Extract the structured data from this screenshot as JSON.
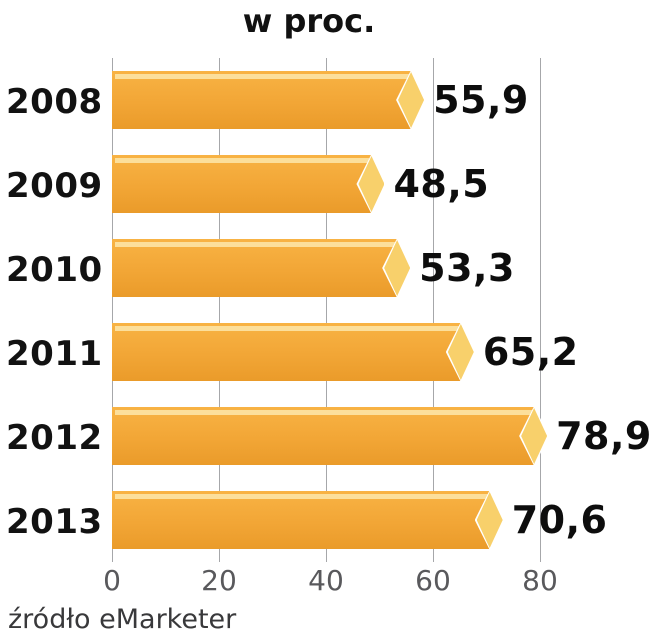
{
  "chart_data": {
    "type": "bar",
    "orientation": "horizontal",
    "title": "w proc.",
    "categories": [
      "2008",
      "2009",
      "2010",
      "2011",
      "2012",
      "2013"
    ],
    "values": [
      55.9,
      48.5,
      53.3,
      65.2,
      78.9,
      70.6
    ],
    "value_labels": [
      "55,9",
      "48,5",
      "53,3",
      "65,2",
      "78,9",
      "70,6"
    ],
    "xlim": [
      0,
      80
    ],
    "x_ticks": [
      0,
      20,
      40,
      60,
      80
    ],
    "x_tick_labels": [
      "0",
      "20",
      "40",
      "60",
      "80"
    ],
    "grid": "vertical",
    "legend": "none",
    "source": "źródło eMarketer",
    "colors": {
      "bar_main": "#F2A636",
      "bar_dark": "#EA9B2A",
      "bar_highlight": "#FCE2A0",
      "bar_cap": "#F8D06B",
      "grid_line": "#A6A7AA",
      "tick_label": "#59595C",
      "label_text": "#111111",
      "source_text": "#39393B"
    }
  }
}
